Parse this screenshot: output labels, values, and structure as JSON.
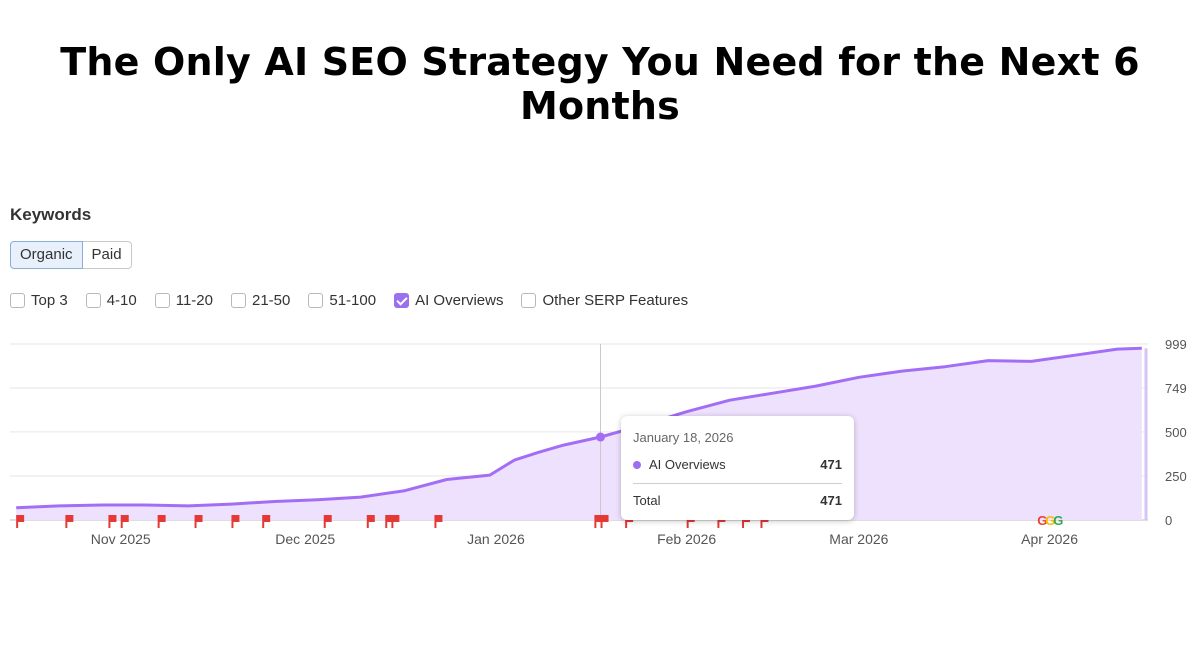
{
  "headline": "The Only AI SEO Strategy You Need for the Next 6 Months",
  "panel": {
    "title": "Keywords",
    "tabs": [
      {
        "label": "Organic",
        "active": true
      },
      {
        "label": "Paid",
        "active": false
      }
    ],
    "filters": [
      {
        "label": "Top 3",
        "checked": false
      },
      {
        "label": "4-10",
        "checked": false
      },
      {
        "label": "11-20",
        "checked": false
      },
      {
        "label": "21-50",
        "checked": false
      },
      {
        "label": "51-100",
        "checked": false
      },
      {
        "label": "AI Overviews",
        "checked": true
      },
      {
        "label": "Other SERP Features",
        "checked": false
      }
    ]
  },
  "tooltip": {
    "date": "January 18, 2026",
    "series_label": "AI Overviews",
    "series_value": "471",
    "total_label": "Total",
    "total_value": "471"
  },
  "colors": {
    "series_line": "#a36ef5",
    "series_fill": "#eee1fd",
    "marker": "#e53935",
    "checkbox_checked": "#9b6ff0"
  },
  "chart_data": {
    "type": "area",
    "series": [
      {
        "name": "AI Overviews",
        "x": [
          "2025-10-15",
          "2025-10-22",
          "2025-10-29",
          "2025-11-05",
          "2025-11-12",
          "2025-11-19",
          "2025-11-26",
          "2025-12-03",
          "2025-12-10",
          "2025-12-17",
          "2025-12-24",
          "2025-12-31",
          "2026-01-04",
          "2026-01-08",
          "2026-01-12",
          "2026-01-18",
          "2026-01-25",
          "2026-02-01",
          "2026-02-08",
          "2026-02-15",
          "2026-02-22",
          "2026-03-01",
          "2026-03-08",
          "2026-03-15",
          "2026-03-22",
          "2026-03-29",
          "2026-04-05",
          "2026-04-12",
          "2026-04-16"
        ],
        "values": [
          70,
          80,
          85,
          85,
          80,
          90,
          105,
          115,
          130,
          165,
          230,
          255,
          340,
          385,
          425,
          471,
          540,
          615,
          680,
          720,
          760,
          810,
          845,
          870,
          905,
          900,
          935,
          970,
          975
        ]
      }
    ],
    "x_tick_labels": [
      "Nov 2025",
      "Dec 2025",
      "Jan 2026",
      "Feb 2026",
      "Mar 2026",
      "Apr 2026"
    ],
    "x_tick_dates": [
      "2025-11-01",
      "2025-12-01",
      "2026-01-01",
      "2026-02-01",
      "2026-03-01",
      "2026-04-01"
    ],
    "y_ticks": [
      0,
      250,
      500,
      749,
      999
    ],
    "xlim": [
      "2025-10-14",
      "2026-04-17"
    ],
    "ylim": [
      0,
      999
    ],
    "grid": true,
    "highlight": {
      "date": "2026-01-18",
      "value": 471
    },
    "event_markers": [
      "2025-10-15",
      "2025-10-23",
      "2025-10-30",
      "2025-11-01",
      "2025-11-07",
      "2025-11-13",
      "2025-11-19",
      "2025-11-24",
      "2025-12-04",
      "2025-12-11",
      "2025-12-14",
      "2025-12-15",
      "2025-12-22",
      "2026-01-17",
      "2026-01-18",
      "2026-01-22",
      "2026-02-01",
      "2026-02-06",
      "2026-02-10",
      "2026-02-13"
    ]
  }
}
